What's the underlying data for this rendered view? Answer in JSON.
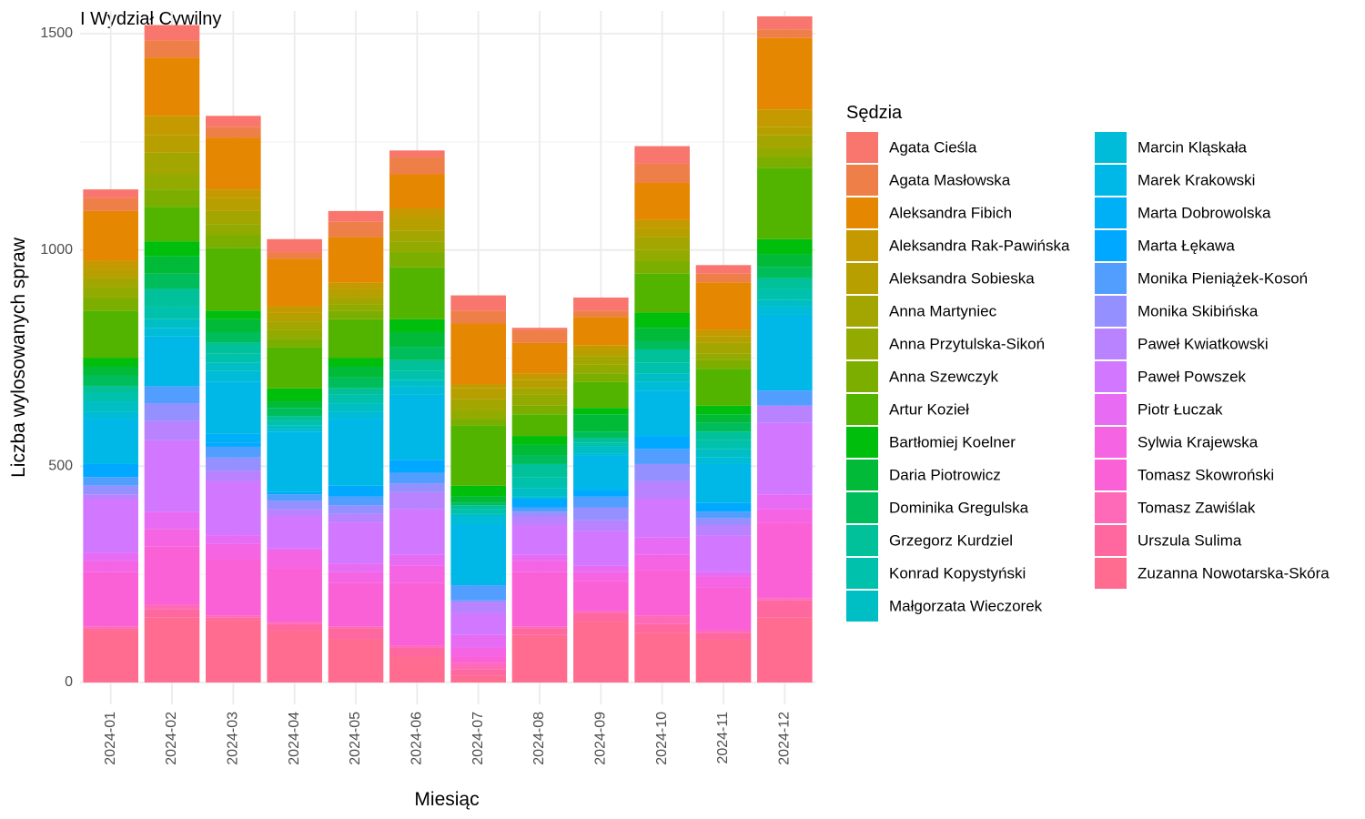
{
  "chart_data": {
    "type": "bar",
    "stacked": true,
    "title": "I Wydział Cywilny",
    "xlabel": "Miesiąc",
    "ylabel": "Liczba wylosowanych spraw",
    "ylim": [
      0,
      1550
    ],
    "yticks": [
      0,
      500,
      1000,
      1500
    ],
    "grid": true,
    "legend_title": "Sędzia",
    "legend_position": "right",
    "categories": [
      "2024-01",
      "2024-02",
      "2024-03",
      "2024-04",
      "2024-05",
      "2024-06",
      "2024-07",
      "2024-08",
      "2024-09",
      "2024-10",
      "2024-11",
      "2024-12"
    ],
    "stack_order": "bottom-to-top",
    "series": [
      {
        "name": "Zuzanna Nowotarska-Skóra",
        "color": "#FF6C90",
        "values": [
          120,
          150,
          145,
          120,
          100,
          60,
          15,
          110,
          140,
          115,
          100,
          150
        ]
      },
      {
        "name": "Urszula Sulima",
        "color": "#FF689F",
        "values": [
          5,
          20,
          5,
          15,
          25,
          20,
          15,
          15,
          20,
          20,
          15,
          40
        ]
      },
      {
        "name": "Tomasz Zawiślak",
        "color": "#FE6AB8",
        "values": [
          5,
          10,
          5,
          5,
          5,
          5,
          15,
          5,
          5,
          20,
          5,
          5
        ]
      },
      {
        "name": "Tomasz Skowroński",
        "color": "#FB61D7",
        "values": [
          125,
          135,
          130,
          125,
          100,
          145,
          15,
          125,
          70,
          105,
          100,
          175
        ]
      },
      {
        "name": "Sylwia Krajewska",
        "color": "#F564E3",
        "values": [
          25,
          40,
          35,
          40,
          25,
          40,
          20,
          25,
          20,
          35,
          25,
          30
        ]
      },
      {
        "name": "Piotr Łuczak",
        "color": "#E76BF3",
        "values": [
          20,
          40,
          20,
          5,
          20,
          25,
          30,
          15,
          15,
          40,
          10,
          35
        ]
      },
      {
        "name": "Paweł Powszek",
        "color": "#D277FF",
        "values": [
          125,
          165,
          125,
          75,
          95,
          105,
          50,
          70,
          80,
          90,
          85,
          165
        ]
      },
      {
        "name": "Paweł Kwiatkowski",
        "color": "#B983FF",
        "values": [
          10,
          45,
          25,
          15,
          20,
          40,
          25,
          20,
          25,
          40,
          25,
          40
        ]
      },
      {
        "name": "Monika Skibińska",
        "color": "#9590FF",
        "values": [
          20,
          40,
          30,
          20,
          20,
          20,
          5,
          10,
          30,
          40,
          15,
          0
        ]
      },
      {
        "name": "Monika Pieniążek-Kosoń",
        "color": "#529EFF",
        "values": [
          20,
          40,
          25,
          15,
          20,
          25,
          35,
          10,
          25,
          35,
          15,
          35
        ]
      },
      {
        "name": "Marta Łękawa",
        "color": "#00A9FF",
        "values": [
          30,
          0,
          10,
          5,
          25,
          30,
          0,
          20,
          15,
          30,
          20,
          0
        ]
      },
      {
        "name": "Marta Dobrowolska",
        "color": "#00B0F6",
        "values": [
          0,
          0,
          20,
          0,
          0,
          0,
          0,
          0,
          0,
          0,
          0,
          0
        ]
      },
      {
        "name": "Marek Krakowski",
        "color": "#00B8E7",
        "values": [
          105,
          115,
          120,
          140,
          155,
          150,
          140,
          0,
          80,
          105,
          90,
          175
        ]
      },
      {
        "name": "Marcin Kląskała",
        "color": "#00BCD8",
        "values": [
          15,
          20,
          25,
          5,
          15,
          20,
          20,
          5,
          5,
          20,
          15,
          20
        ]
      },
      {
        "name": "Małgorzata Wieczorek",
        "color": "#00BFC4",
        "values": [
          25,
          20,
          20,
          10,
          20,
          15,
          5,
          20,
          15,
          20,
          20,
          15
        ]
      },
      {
        "name": "Konrad Kopystyński",
        "color": "#00C1AB",
        "values": [
          20,
          30,
          20,
          10,
          20,
          20,
          10,
          25,
          10,
          25,
          20,
          25
        ]
      },
      {
        "name": "Grzegorz Kurdziel",
        "color": "#00C19A",
        "values": [
          15,
          40,
          25,
          10,
          15,
          25,
          10,
          30,
          10,
          30,
          20,
          25
        ]
      },
      {
        "name": "Dominika Gregulska",
        "color": "#00BD5C",
        "values": [
          25,
          35,
          25,
          20,
          25,
          30,
          5,
          20,
          15,
          20,
          20,
          25
        ]
      },
      {
        "name": "Daria Piotrowicz",
        "color": "#00BA38",
        "values": [
          20,
          40,
          30,
          15,
          25,
          35,
          15,
          25,
          40,
          30,
          20,
          30
        ]
      },
      {
        "name": "Bartłomiej Koelner",
        "color": "#00BE0C",
        "values": [
          20,
          35,
          20,
          30,
          20,
          30,
          25,
          20,
          15,
          35,
          20,
          35
        ]
      },
      {
        "name": "Artur Kozieł",
        "color": "#53B400",
        "values": [
          110,
          80,
          145,
          95,
          90,
          120,
          140,
          50,
          60,
          90,
          85,
          165
        ]
      },
      {
        "name": "Anna Szewczyk",
        "color": "#7CAE00",
        "values": [
          30,
          40,
          30,
          20,
          20,
          35,
          15,
          20,
          20,
          30,
          20,
          25
        ]
      },
      {
        "name": "Anna Przytulska-Sikoń",
        "color": "#93AA00",
        "values": [
          25,
          35,
          25,
          20,
          15,
          25,
          20,
          25,
          20,
          25,
          15,
          20
        ]
      },
      {
        "name": "Anna Martyniec",
        "color": "#A3A500",
        "values": [
          20,
          50,
          30,
          20,
          15,
          25,
          25,
          15,
          20,
          30,
          25,
          30
        ]
      },
      {
        "name": "Aleksandra Sobieska",
        "color": "#B79F00",
        "values": [
          20,
          40,
          30,
          20,
          20,
          30,
          25,
          20,
          15,
          20,
          15,
          20
        ]
      },
      {
        "name": "Aleksandra Rak-Pawińska",
        "color": "#C49A00",
        "values": [
          20,
          45,
          20,
          15,
          15,
          20,
          10,
          15,
          10,
          20,
          15,
          40
        ]
      },
      {
        "name": "Aleksandra Fibich",
        "color": "#E58700",
        "values": [
          115,
          135,
          120,
          110,
          105,
          80,
          140,
          70,
          65,
          85,
          110,
          165
        ]
      },
      {
        "name": "Agata Masłowska",
        "color": "#EF7F49",
        "values": [
          30,
          40,
          25,
          15,
          35,
          40,
          30,
          30,
          15,
          45,
          20,
          20
        ]
      },
      {
        "name": "Agata Cieśla",
        "color": "#F8766D",
        "values": [
          20,
          35,
          25,
          30,
          25,
          15,
          35,
          5,
          30,
          40,
          20,
          30
        ]
      }
    ]
  }
}
